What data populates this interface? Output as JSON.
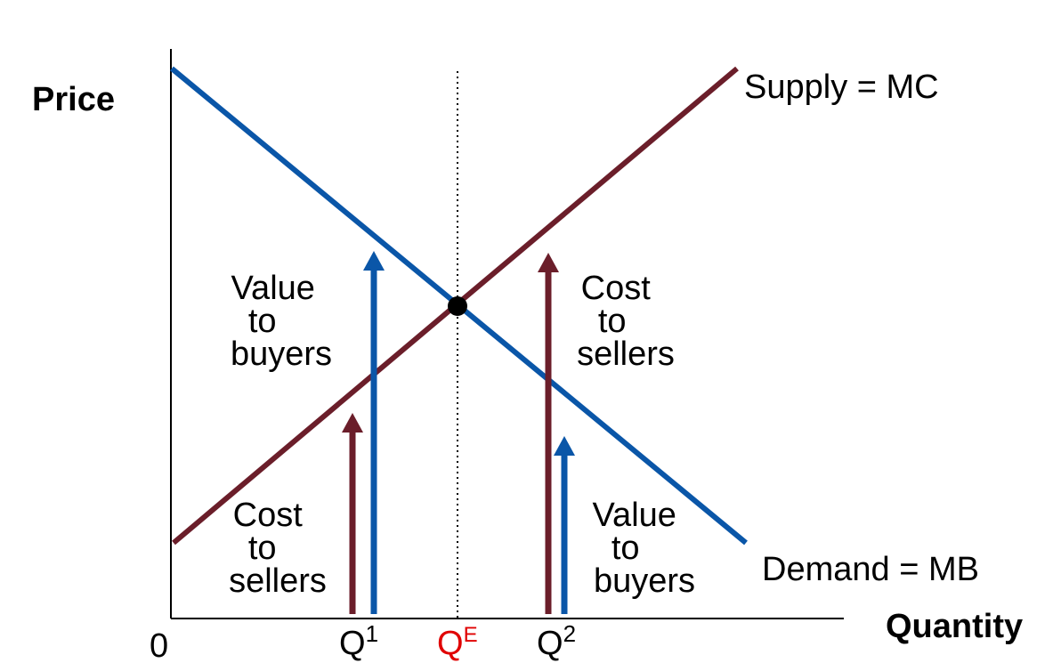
{
  "axes": {
    "y_label": "Price",
    "x_label": "Quantity",
    "origin": "0"
  },
  "curves": {
    "supply_label": "Supply = MC",
    "demand_label": "Demand = MB",
    "supply_color": "#6b1e2a",
    "demand_color": "#0a56a8"
  },
  "ticks": {
    "q1_base": "Q",
    "q1_sup": "1",
    "qe_base": "Q",
    "qe_sup": "E",
    "q2_base": "Q",
    "q2_sup": "2",
    "qe_color": "#e00000"
  },
  "annotations": {
    "left_value": [
      "Value",
      "to",
      "buyers"
    ],
    "left_cost": [
      "Cost",
      "to",
      "sellers"
    ],
    "right_cost": [
      "Cost",
      "to",
      "sellers"
    ],
    "right_value": [
      "Value",
      "to",
      "buyers"
    ]
  }
}
